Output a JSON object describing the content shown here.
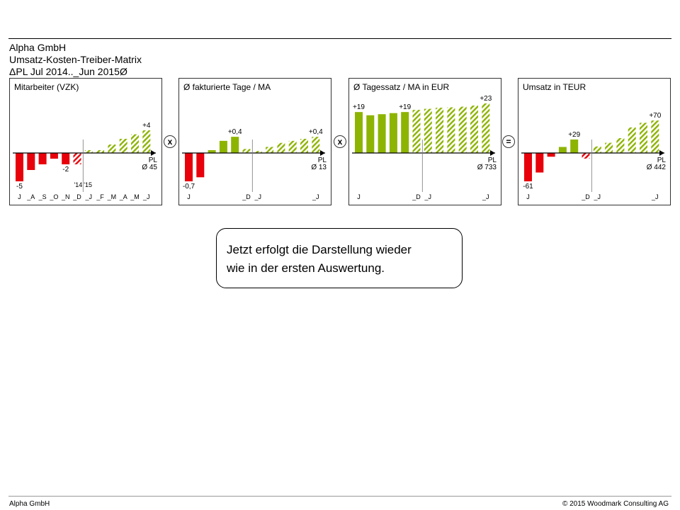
{
  "header": {
    "company": "Alpha GmbH",
    "report": "Umsatz-Kosten-Treiber-Matrix",
    "period": "ΔPL Jul 2014.._Jun 2015Ø"
  },
  "operators": [
    "x",
    "x",
    "="
  ],
  "colors": {
    "negative": "#e8000b",
    "positive": "#8db400",
    "axis": "#000000"
  },
  "callout": {
    "line1": "Jetzt erfolgt die Darstellung wieder",
    "line2": "wie in der ersten Auswertung."
  },
  "footer": {
    "left": "Alpha GmbH",
    "right": "© 2015 Woodmark Consulting AG"
  },
  "chart_data": [
    {
      "type": "bar",
      "title": "Mitarbeiter (VZK)",
      "reference": {
        "label": "PL",
        "avg_label": "Ø 45"
      },
      "year_labels": [
        "'14",
        "'15"
      ],
      "month_labels": [
        "J",
        "_A",
        "_S",
        "_O",
        "_N",
        "_D",
        "_J",
        "_F",
        "_M",
        "_A",
        "_M",
        "_J"
      ],
      "values": [
        -5,
        -3,
        -2,
        -1,
        -2,
        -2,
        0.5,
        0.5,
        1.5,
        2.5,
        3.3,
        4
      ],
      "kind": [
        "actual",
        "actual",
        "actual",
        "actual",
        "actual",
        "forecast",
        "plan",
        "plan",
        "plan",
        "plan",
        "plan",
        "plan"
      ],
      "labels": [
        "-5",
        "",
        "",
        "",
        "-2",
        "",
        "",
        "",
        "",
        "",
        "",
        "+4"
      ]
    },
    {
      "type": "bar",
      "title": "Ø fakturierte Tage / MA",
      "reference": {
        "label": "PL",
        "avg_label": "Ø 13"
      },
      "month_labels": [
        "J",
        "",
        "",
        "",
        "",
        "_D",
        "_J",
        "",
        "",
        "",
        "",
        "_J"
      ],
      "values": [
        -0.7,
        -0.6,
        0.07,
        0.3,
        0.4,
        0.1,
        0.05,
        0.15,
        0.25,
        0.3,
        0.35,
        0.4
      ],
      "kind": [
        "actual",
        "actual",
        "actual",
        "actual",
        "actual",
        "plan",
        "plan",
        "plan",
        "plan",
        "plan",
        "plan",
        "plan"
      ],
      "labels": [
        "-0,7",
        "",
        "",
        "",
        "+0,4",
        "",
        "",
        "",
        "",
        "",
        "",
        "+0,4"
      ]
    },
    {
      "type": "bar",
      "title": "Ø Tagessatz / MA in EUR",
      "reference": {
        "label": "PL",
        "avg_label": "Ø 733"
      },
      "month_labels": [
        "J",
        "",
        "",
        "",
        "",
        "_D",
        "_J",
        "",
        "",
        "",
        "",
        "_J"
      ],
      "values": [
        19,
        17.5,
        18,
        18.5,
        19,
        20,
        20.5,
        21,
        21.2,
        21.5,
        22,
        23
      ],
      "kind": [
        "actual",
        "actual",
        "actual",
        "actual",
        "actual",
        "plan",
        "plan",
        "plan",
        "plan",
        "plan",
        "plan",
        "plan"
      ],
      "labels": [
        "+19",
        "",
        "",
        "",
        "+19",
        "",
        "",
        "",
        "",
        "",
        "",
        "+23"
      ]
    },
    {
      "type": "bar",
      "title": "Umsatz in TEUR",
      "reference": {
        "label": "PL",
        "avg_label": "Ø 442"
      },
      "month_labels": [
        "J",
        "",
        "",
        "",
        "",
        "_D",
        "_J",
        "",
        "",
        "",
        "",
        "_J"
      ],
      "values": [
        -61,
        -42,
        -8,
        13,
        29,
        -12,
        14,
        22,
        32,
        55,
        65,
        70
      ],
      "kind": [
        "actual",
        "actual",
        "actual",
        "actual",
        "actual",
        "forecast",
        "plan",
        "plan",
        "plan",
        "plan",
        "plan",
        "plan"
      ],
      "labels": [
        "-61",
        "",
        "",
        "",
        "+29",
        "",
        "",
        "",
        "",
        "",
        "",
        "+70"
      ]
    }
  ]
}
